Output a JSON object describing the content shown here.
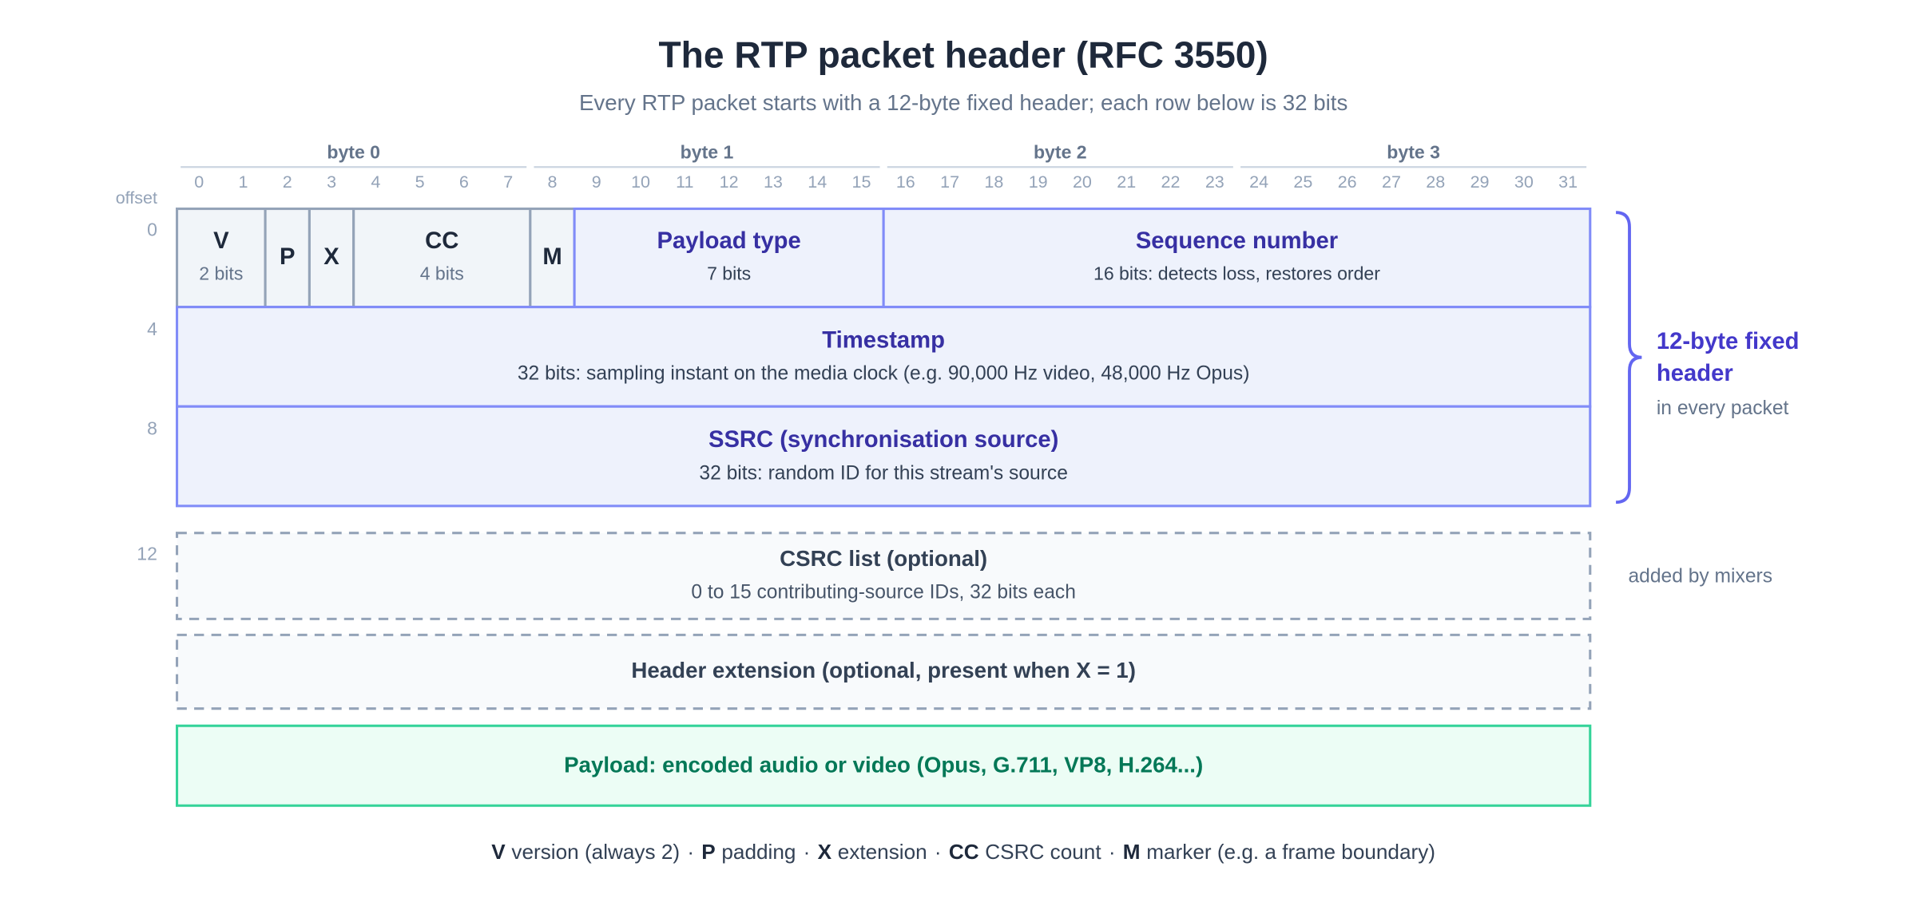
{
  "header": {
    "title": "The RTP packet header (RFC 3550)",
    "subtitle": "Every RTP packet starts with a 12-byte fixed header; each row below is 32 bits"
  },
  "bytes": [
    "byte 0",
    "byte 1",
    "byte 2",
    "byte 3"
  ],
  "bits": [
    0,
    1,
    2,
    3,
    4,
    5,
    6,
    7,
    8,
    9,
    10,
    11,
    12,
    13,
    14,
    15,
    16,
    17,
    18,
    19,
    20,
    21,
    22,
    23,
    24,
    25,
    26,
    27,
    28,
    29,
    30,
    31
  ],
  "offset_label": "offset",
  "offsets": [
    0,
    4,
    8,
    12
  ],
  "fields": [
    {
      "name": "V",
      "detail": "2 bits"
    },
    {
      "name": "P"
    },
    {
      "name": "X"
    },
    {
      "name": "CC",
      "detail": "4 bits"
    },
    {
      "name": "M"
    },
    {
      "name": "Payload type",
      "detail": "7 bits"
    },
    {
      "name": "Sequence number",
      "detail": "16 bits: detects loss, restores order"
    }
  ],
  "rows": [
    {
      "name": "Timestamp",
      "detail": "32 bits: sampling instant on the media clock (e.g. 90,000 Hz video, 48,000 Hz Opus)"
    },
    {
      "name": "SSRC (synchronisation source)",
      "detail": "32 bits: random ID for this stream's source"
    }
  ],
  "optional": [
    {
      "name": "CSRC list (optional)",
      "detail": "0 to 15 contributing-source IDs, 32 bits each"
    },
    {
      "name": "Header extension (optional, present when X = 1)"
    }
  ],
  "payload": "Payload: encoded audio or video (Opus, G.711, VP8, H.264...)",
  "bracket": {
    "title": "12-byte fixed header",
    "note": "in every packet"
  },
  "mixers_note": "added by mixers",
  "legend": {
    "separator": "·",
    "items": [
      {
        "key": "V",
        "text": "version (always 2)"
      },
      {
        "key": "P",
        "text": "padding"
      },
      {
        "key": "X",
        "text": "extension"
      },
      {
        "key": "CC",
        "text": "CSRC count"
      },
      {
        "key": "M",
        "text": "marker (e.g. a frame boundary)"
      }
    ]
  }
}
